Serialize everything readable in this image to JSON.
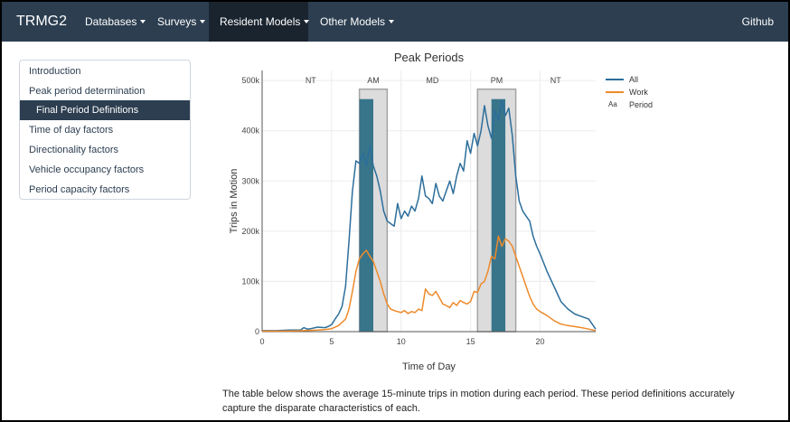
{
  "nav": {
    "brand": "TRMG2",
    "items": [
      {
        "label": "Databases"
      },
      {
        "label": "Surveys"
      },
      {
        "label": "Resident Models"
      },
      {
        "label": "Other Models"
      }
    ],
    "github": "Github"
  },
  "sidebar": {
    "items": [
      {
        "label": "Introduction"
      },
      {
        "label": "Peak period determination"
      },
      {
        "label": "Final Period Definitions"
      },
      {
        "label": "Time of day factors"
      },
      {
        "label": "Directionality factors"
      },
      {
        "label": "Vehicle occupancy factors"
      },
      {
        "label": "Period capacity factors"
      }
    ]
  },
  "colors": {
    "navbar": "#2c3e50",
    "active": "#1a242f",
    "all": "#2c6e9b",
    "work": "#ee8a2a",
    "period_fill": "#d9d9d9",
    "period_bar": "#2e6f86"
  },
  "chart_data": {
    "type": "line",
    "title": "Peak Periods",
    "xlabel": "Time of Day",
    "ylabel": "Trips in Motion",
    "xlim": [
      0,
      24
    ],
    "ylim": [
      0,
      520000
    ],
    "xticks": [
      0,
      5,
      10,
      15,
      20
    ],
    "xtick_labels": [
      "0",
      "5",
      "10",
      "15",
      "20"
    ],
    "yticks": [
      0,
      100000,
      200000,
      300000,
      400000,
      500000
    ],
    "ytick_labels": [
      "0",
      "100k",
      "200k",
      "300k",
      "400k",
      "500k"
    ],
    "grid": true,
    "legend_position": "top-right",
    "legend_entries": [
      "All",
      "Work"
    ],
    "legend_period_symbol": "Aa",
    "legend_period_label": "Period",
    "periods": [
      {
        "label": "NT",
        "start": 0,
        "end": 7
      },
      {
        "label": "AM",
        "start": 7,
        "end": 9
      },
      {
        "label": "MD",
        "start": 9,
        "end": 15.5
      },
      {
        "label": "PM",
        "start": 15.5,
        "end": 18.25
      },
      {
        "label": "NT",
        "start": 18.25,
        "end": 24
      }
    ],
    "peak_bars": [
      {
        "start": 7,
        "end": 8,
        "value": 463000
      },
      {
        "start": 16.5,
        "end": 17.5,
        "value": 463000
      }
    ],
    "series": [
      {
        "name": "All",
        "x": [
          0,
          1,
          2,
          2.75,
          3,
          3.25,
          3.5,
          4,
          4.5,
          4.75,
          5,
          5.25,
          5.5,
          5.75,
          6,
          6.25,
          6.5,
          6.75,
          7,
          7.25,
          7.5,
          7.75,
          8,
          8.25,
          8.5,
          8.75,
          9,
          9.25,
          9.5,
          9.75,
          10,
          10.25,
          10.5,
          10.75,
          11,
          11.25,
          11.5,
          11.75,
          12,
          12.25,
          12.5,
          12.75,
          13,
          13.25,
          13.5,
          13.75,
          14,
          14.25,
          14.5,
          14.75,
          15,
          15.25,
          15.5,
          15.75,
          16,
          16.25,
          16.5,
          16.75,
          17,
          17.25,
          17.5,
          17.75,
          18,
          18.25,
          18.5,
          18.75,
          19,
          19.25,
          19.5,
          19.75,
          20,
          20.5,
          21,
          21.5,
          22,
          22.5,
          23,
          23.5,
          24
        ],
        "values": [
          2000,
          2000,
          3000,
          3000,
          8000,
          5000,
          6000,
          9000,
          8000,
          10000,
          14000,
          25000,
          35000,
          50000,
          90000,
          180000,
          280000,
          340000,
          335000,
          355000,
          330000,
          370000,
          330000,
          310000,
          280000,
          240000,
          220000,
          215000,
          210000,
          255000,
          225000,
          240000,
          230000,
          250000,
          240000,
          265000,
          310000,
          270000,
          265000,
          255000,
          295000,
          270000,
          260000,
          280000,
          300000,
          275000,
          310000,
          335000,
          320000,
          380000,
          355000,
          395000,
          370000,
          400000,
          450000,
          410000,
          385000,
          440000,
          420000,
          460000,
          430000,
          445000,
          390000,
          310000,
          260000,
          240000,
          230000,
          220000,
          190000,
          170000,
          155000,
          120000,
          90000,
          60000,
          45000,
          35000,
          30000,
          25000,
          5000
        ]
      },
      {
        "name": "Work",
        "x": [
          0,
          1,
          2,
          3,
          4,
          4.5,
          5,
          5.5,
          6,
          6.25,
          6.5,
          6.75,
          7,
          7.25,
          7.5,
          7.75,
          8,
          8.25,
          8.5,
          8.75,
          9,
          9.25,
          9.5,
          9.75,
          10,
          10.25,
          10.5,
          10.75,
          11,
          11.25,
          11.5,
          11.75,
          12,
          12.25,
          12.5,
          12.75,
          13,
          13.25,
          13.5,
          13.75,
          14,
          14.25,
          14.5,
          14.75,
          15,
          15.25,
          15.5,
          15.75,
          16,
          16.25,
          16.5,
          16.75,
          17,
          17.25,
          17.5,
          17.75,
          18,
          18.25,
          18.5,
          18.75,
          19,
          19.25,
          19.5,
          19.75,
          20,
          20.5,
          21,
          21.5,
          22,
          22.5,
          23,
          23.5,
          24
        ],
        "values": [
          1000,
          1000,
          1000,
          2000,
          3000,
          4000,
          6000,
          12000,
          25000,
          45000,
          80000,
          120000,
          145000,
          155000,
          162000,
          150000,
          140000,
          120000,
          100000,
          75000,
          55000,
          45000,
          42000,
          40000,
          38000,
          42000,
          36000,
          40000,
          38000,
          45000,
          42000,
          85000,
          75000,
          72000,
          80000,
          68000,
          55000,
          52000,
          48000,
          58000,
          52000,
          62000,
          58000,
          55000,
          60000,
          80000,
          78000,
          95000,
          100000,
          120000,
          150000,
          145000,
          190000,
          170000,
          185000,
          180000,
          170000,
          150000,
          130000,
          110000,
          90000,
          70000,
          55000,
          45000,
          40000,
          32000,
          22000,
          15000,
          12000,
          10000,
          8000,
          5000,
          2000
        ]
      }
    ]
  },
  "paragraph": "The table below shows the average 15-minute trips in motion during each period. These period definitions accurately capture the disparate characteristics of each."
}
